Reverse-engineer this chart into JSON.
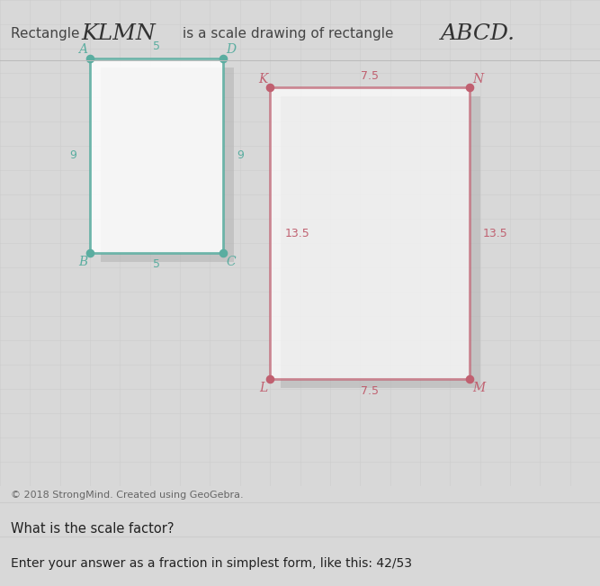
{
  "background_color": "#d8d8d8",
  "main_bg": "#e0e0df",
  "title_parts": {
    "rect_text": "Rectangle ",
    "klmn_text": "KLMN",
    "middle_text": " is a scale drawing of rectangle ",
    "abcd_text": "ABCD."
  },
  "rect_abcd": {
    "color": "#5aada0",
    "dot_color": "#5aada0",
    "label_A": "A",
    "label_B": "B",
    "label_C": "C",
    "label_D": "D",
    "dim_top": "5",
    "dim_left": "9",
    "dim_right": "9",
    "dim_bottom": "5",
    "dim_color": "#5aada0"
  },
  "rect_klmn": {
    "color": "#c06070",
    "dot_color": "#c06070",
    "label_K": "K",
    "label_L": "L",
    "label_M": "M",
    "label_N": "N",
    "dim_top": "7.5",
    "dim_left": "13.5",
    "dim_right": "13.5",
    "dim_bottom": "7.5",
    "dim_color": "#c06070"
  },
  "copyright": "© 2018 StrongMind. Created using GeoGebra.",
  "question": "What is the scale factor?",
  "answer_hint": "Enter your answer as a fraction in simplest form, like this: 42/53",
  "shadow_color": "#b0b0b0"
}
